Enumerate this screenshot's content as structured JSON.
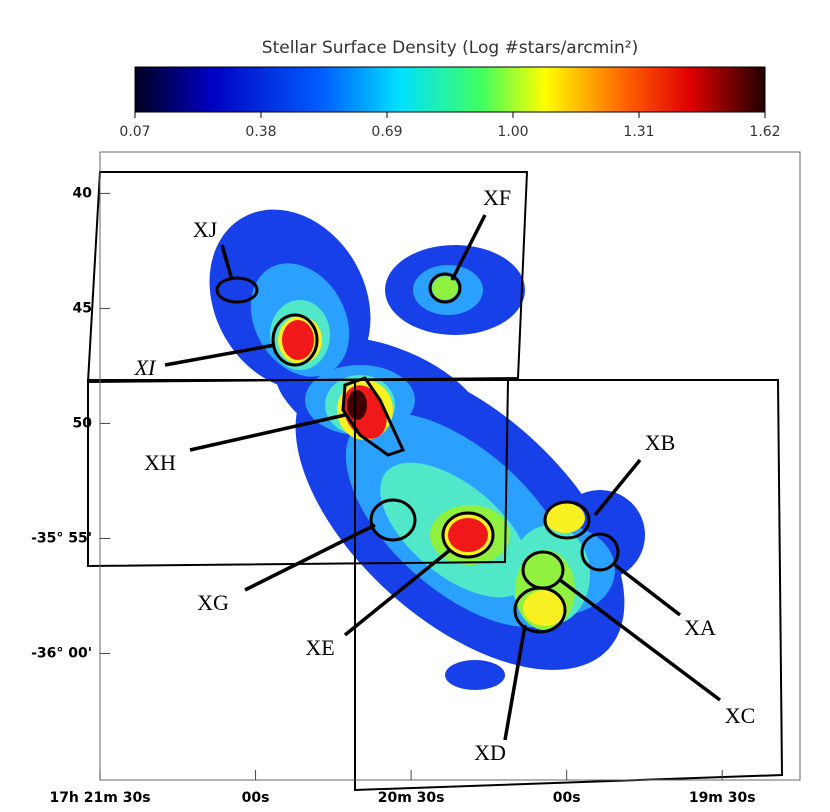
{
  "chart_data": {
    "type": "density-map",
    "title": "Stellar Surface Density (Log #stars/arcmin²)",
    "colorbar": {
      "clim": [
        0.07,
        1.62
      ],
      "ticks": [
        0.07,
        0.38,
        0.69,
        {
          "value": 1,
          "label": "1.00"
        },
        1.31,
        1.62
      ]
    },
    "xlim": [
      1290,
      1155
    ],
    "xticks": [
      {
        "value": 1290,
        "label": "17h 21m 30s"
      },
      {
        "value": 1260,
        "label": "00s"
      },
      {
        "value": 1230,
        "label": "20m 30s"
      },
      {
        "value": 1200,
        "label": "00s"
      },
      {
        "value": 1170,
        "label": "19m 30s"
      }
    ],
    "ylim": [
      65.5,
      38.2
    ],
    "yticks": [
      40,
      45,
      50,
      {
        "value": 55,
        "label": "-35° 55'"
      },
      {
        "value": 60,
        "label": "-36° 00'"
      }
    ],
    "annotations": [
      "XF",
      "XJ",
      "XI",
      "XH",
      "XG",
      "XE",
      "XD",
      "XC",
      "XA",
      "XB"
    ]
  }
}
